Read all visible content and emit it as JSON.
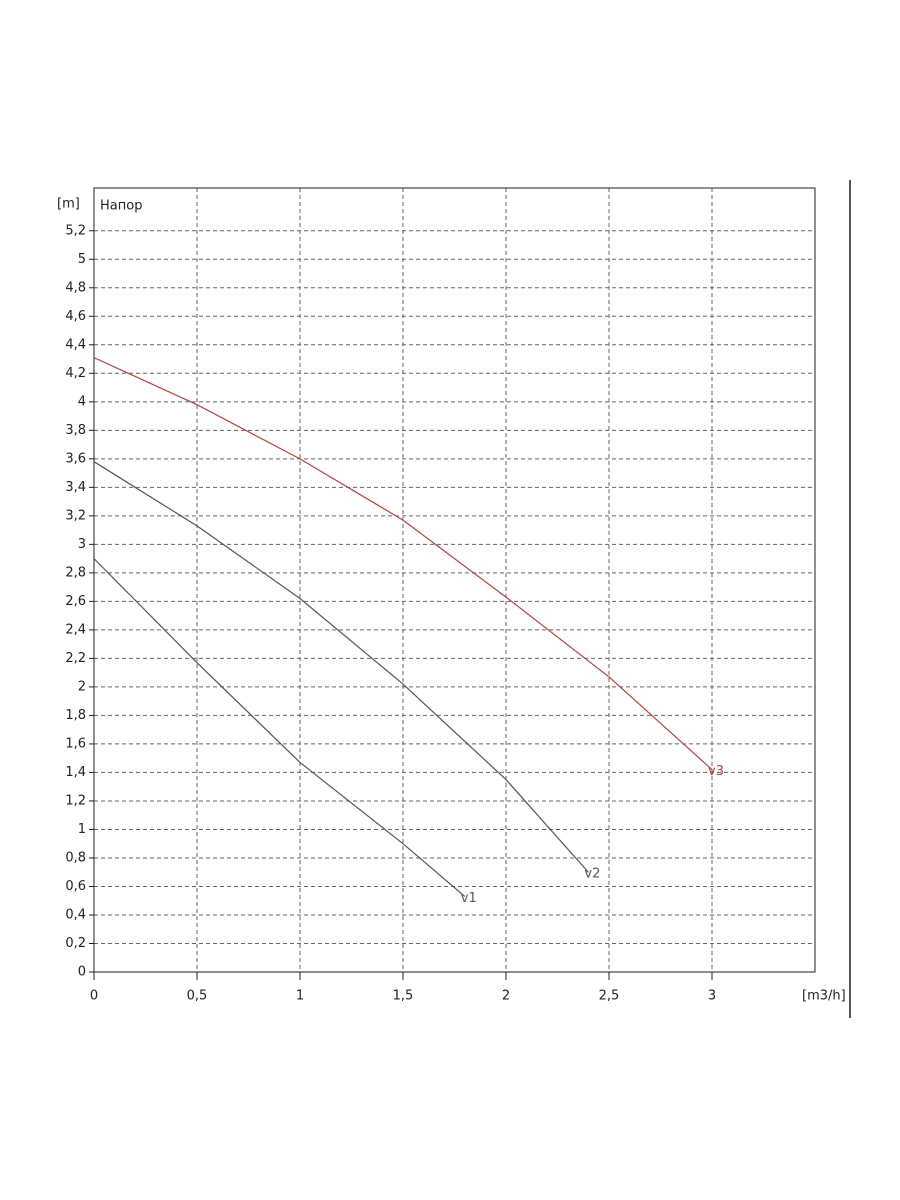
{
  "chart_data": {
    "type": "line",
    "title": "Напор",
    "y_label": "[m]",
    "x_label": "[m3/h]",
    "xlim": [
      0,
      3.5
    ],
    "ylim": [
      0,
      5.5
    ],
    "xticks": [
      0,
      {
        "value": 0.5,
        "label": "0,5"
      },
      1,
      {
        "value": 1.5,
        "label": "1,5"
      },
      2,
      {
        "value": 2.5,
        "label": "2,5"
      },
      3
    ],
    "yticks": [
      0,
      {
        "value": 0.2,
        "label": "0,2"
      },
      {
        "value": 0.4,
        "label": "0,4"
      },
      {
        "value": 0.6,
        "label": "0,6"
      },
      {
        "value": 0.8,
        "label": "0,8"
      },
      1,
      {
        "value": 1.2,
        "label": "1,2"
      },
      {
        "value": 1.4,
        "label": "1,4"
      },
      {
        "value": 1.6,
        "label": "1,6"
      },
      {
        "value": 1.8,
        "label": "1,8"
      },
      2,
      {
        "value": 2.2,
        "label": "2,2"
      },
      {
        "value": 2.4,
        "label": "2,4"
      },
      {
        "value": 2.6,
        "label": "2,6"
      },
      {
        "value": 2.8,
        "label": "2,8"
      },
      3,
      {
        "value": 3.2,
        "label": "3,2"
      },
      {
        "value": 3.4,
        "label": "3,4"
      },
      {
        "value": 3.6,
        "label": "3,6"
      },
      {
        "value": 3.8,
        "label": "3,8"
      },
      4,
      {
        "value": 4.2,
        "label": "4,2"
      },
      {
        "value": 4.4,
        "label": "4,4"
      },
      {
        "value": 4.6,
        "label": "4,6"
      },
      {
        "value": 4.8,
        "label": "4,8"
      },
      5,
      {
        "value": 5.2,
        "label": "5,2"
      }
    ],
    "grid": true,
    "series": [
      {
        "name": "v1",
        "color": "#555555",
        "x": [
          0,
          0.5,
          1,
          1.5,
          1.8
        ],
        "values": [
          2.9,
          2.17,
          1.47,
          0.9,
          0.53
        ]
      },
      {
        "name": "v2",
        "color": "#555555",
        "x": [
          0,
          0.5,
          1,
          1.5,
          2,
          2.4
        ],
        "values": [
          3.58,
          3.13,
          2.62,
          2.02,
          1.35,
          0.7
        ]
      },
      {
        "name": "v3",
        "color": "#b04545",
        "x": [
          0,
          0.5,
          1,
          1.5,
          2,
          2.5,
          3
        ],
        "values": [
          4.31,
          3.98,
          3.6,
          3.17,
          2.63,
          2.07,
          1.42
        ]
      }
    ]
  }
}
